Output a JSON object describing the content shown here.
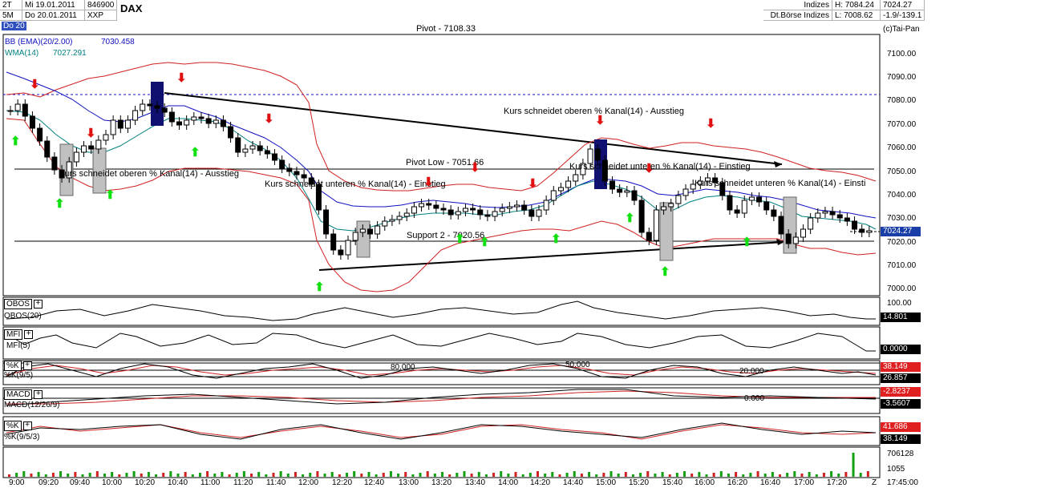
{
  "header": {
    "period1": "2T",
    "period2": "5M",
    "date1": "Mi 19.01.2011",
    "date2": "Do 20.01.2011",
    "code": "846900",
    "exchange": "XXP",
    "symbol": "DAX",
    "category": "Indizes",
    "market": "Dt.Börse Indizes",
    "high": "H: 7084.24",
    "low": "L: 7008.62",
    "last": "7024.27",
    "change": "-1.9/-139.1",
    "copyright": "(c)Tai-Pan"
  },
  "tag_do20": "Do 20",
  "indicators_main": {
    "bb_label": "BB (EMA)(20/2.00)",
    "bb_value": "7030.458",
    "wma_label": "WMA(14)",
    "wma_value": "7027.291"
  },
  "lines": {
    "pivot": "Pivot - 7108.33",
    "pivot_low": "Pivot Low - 7051.66",
    "support2": "Support 2 - 7020.56"
  },
  "annotations": {
    "a1": "Kurs schneidet oberen % Kanal(14) - Ausstieg",
    "a2": "Kurs schneidet unteren % Kanal(14) - Einstieg",
    "a3": "Kurs schneidet oberen % Kanal(14) - Ausstieg",
    "a4": "Kurs schneidet unteren % Kanal(14) - Einstieg",
    "a5": "Kurs schneidet unteren % Kanal(14) - Einsti"
  },
  "price_axis": [
    "7100.00",
    "7090.00",
    "7080.00",
    "7070.00",
    "7060.00",
    "7050.00",
    "7040.00",
    "7030.00",
    "7020.00",
    "7010.00",
    "7000.00"
  ],
  "current_price": "7024.27",
  "panels": {
    "obos": {
      "tag": "OBOS",
      "name": "OBOS(20)",
      "axis": "100.00",
      "value": "14.801"
    },
    "mfi": {
      "tag": "MFI",
      "name": "MFI(5)",
      "value": "0.0000"
    },
    "stoch": {
      "tag": "%K",
      "name": "%K(9/5)",
      "v1": "38.149",
      "v2": "26.857",
      "l80": "80.000",
      "l50": "50.000",
      "l20": "20.000"
    },
    "macd": {
      "tag": "MACD",
      "name": "MACD(12/26/9)",
      "v1": "-2.8237",
      "v2": "-3.5607",
      "zero": "0.000"
    },
    "stoch2": {
      "tag": "%K",
      "name": "%K(9/5/3)",
      "v1": "41.686",
      "v2": "38.149"
    },
    "volume": {
      "v1": "706128",
      "v2": "1055"
    }
  },
  "times": [
    "9:00",
    "09:20",
    "09:40",
    "10:00",
    "10:20",
    "10:40",
    "11:00",
    "11:20",
    "11:40",
    "12:00",
    "12:20",
    "12:40",
    "13:00",
    "13:20",
    "13:40",
    "14:00",
    "14:20",
    "14:40",
    "15:00",
    "15:20",
    "15:40",
    "16:00",
    "16:20",
    "16:40",
    "17:00",
    "17:20"
  ],
  "time_end": "17:45:00",
  "time_z": "Z",
  "colors": {
    "up_arrow": "#10e010",
    "down_arrow": "#e01010",
    "bb": "#d02020",
    "wma": "#008080",
    "ema": "#1010c0",
    "highlight": "#101070"
  }
}
